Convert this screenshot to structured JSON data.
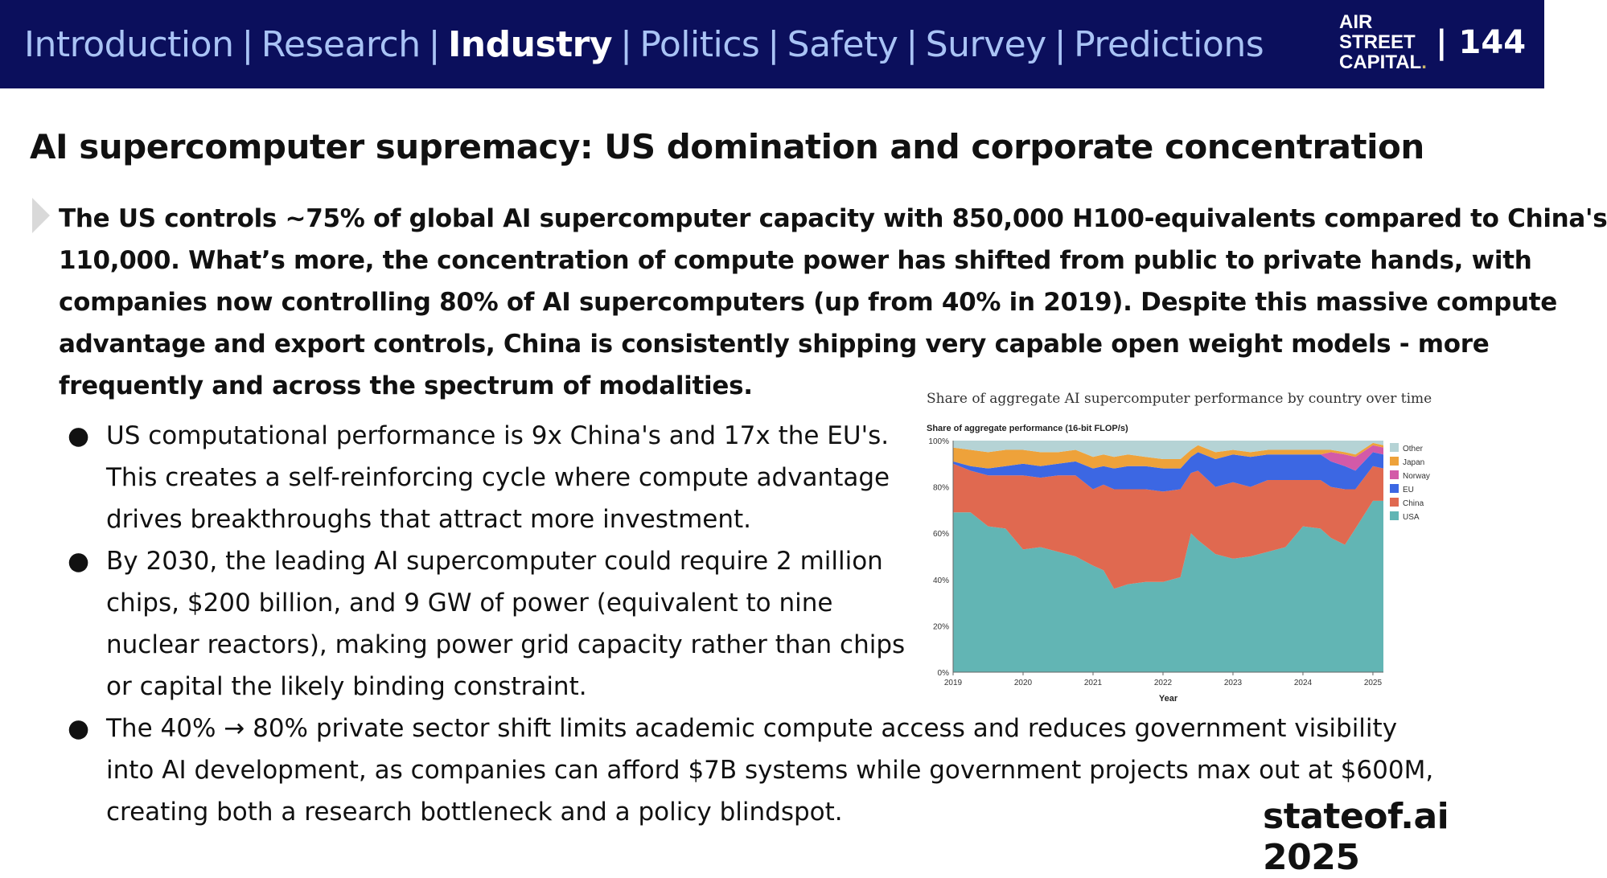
{
  "nav": {
    "items": [
      "Introduction",
      "Research",
      "Industry",
      "Politics",
      "Safety",
      "Survey",
      "Predictions"
    ],
    "active_index": 2,
    "separator": "|"
  },
  "logo": {
    "line1": "AIR",
    "line2": "STREET",
    "line3": "CAPITAL",
    "dot": "."
  },
  "page_number": "| 144",
  "title": "AI supercomputer supremacy: US domination and corporate concentration",
  "lead_lines": [
    "The US controls ~75% of global AI supercomputer capacity with 850,000 H100-equivalents compared to China's",
    "110,000. What’s more, the concentration of compute power has shifted from public to private hands, with",
    "companies now controlling 80% of AI supercomputers (up from 40% in 2019). Despite this massive compute",
    "advantage and export controls, China is consistently shipping very capable open weight models - more",
    "frequently and across the spectrum of modalities."
  ],
  "bullet_marker": "●",
  "bullets": [
    {
      "lines": [
        "US computational performance is 9x China's and 17x the EU's.",
        "This creates a self-reinforcing cycle where compute advantage",
        "drives breakthroughs that attract more investment."
      ]
    },
    {
      "lines": [
        "By 2030, the leading AI supercomputer could require 2 million",
        "chips, $200 billion, and 9 GW of power (equivalent to nine",
        "nuclear reactors), making power grid capacity rather than chips",
        "or capital the likely binding constraint."
      ]
    },
    {
      "lines": [
        "The 40% → 80% private sector shift limits academic compute access and reduces government visibility",
        "into AI development, as companies can afford $7B systems while government projects max out at $600M,",
        "creating both a research bottleneck and a policy blindspot."
      ]
    }
  ],
  "footer": "stateof.ai 2025",
  "colors": {
    "nav_bg": "#0b0f5c",
    "nav_text": "#a9c3f5",
    "USA": "#62b5b4",
    "China": "#e06950",
    "EU": "#3c67e3",
    "Norway": "#d35aa8",
    "Japan": "#eea23a",
    "Other": "#b5d3d5"
  },
  "chart_data": {
    "type": "area",
    "stacked": true,
    "normalized": true,
    "title": "Share of aggregate AI supercomputer performance by country over time",
    "ylabel": "Share of aggregate performance (16-bit FLOP/s)",
    "xlabel": "Year",
    "xlim": [
      2019,
      2025.15
    ],
    "ylim": [
      0,
      100
    ],
    "x_ticks": [
      "2019",
      "2020",
      "2021",
      "2022",
      "2023",
      "2024",
      "2025"
    ],
    "y_ticks": [
      "0%",
      "20%",
      "40%",
      "60%",
      "80%",
      "100%"
    ],
    "legend_position": "right",
    "legend_order": [
      "Other",
      "Japan",
      "Norway",
      "EU",
      "China",
      "USA"
    ],
    "x": [
      2019.0,
      2019.25,
      2019.5,
      2019.75,
      2020.0,
      2020.25,
      2020.5,
      2020.75,
      2021.0,
      2021.15,
      2021.3,
      2021.5,
      2021.75,
      2022.0,
      2022.25,
      2022.4,
      2022.5,
      2022.75,
      2023.0,
      2023.25,
      2023.5,
      2023.75,
      2024.0,
      2024.25,
      2024.4,
      2024.6,
      2024.75,
      2025.0,
      2025.15
    ],
    "series": [
      {
        "name": "USA",
        "values": [
          69,
          69,
          63,
          62,
          53,
          54,
          52,
          50,
          46,
          44,
          36,
          38,
          39,
          39,
          41,
          60,
          57,
          51,
          49,
          50,
          52,
          54,
          63,
          62,
          58,
          55,
          62,
          74,
          74
        ]
      },
      {
        "name": "China",
        "values": [
          21,
          18,
          22,
          23,
          32,
          30,
          33,
          35,
          33,
          37,
          43,
          41,
          40,
          39,
          38,
          26,
          30,
          29,
          33,
          30,
          31,
          29,
          20,
          21,
          22,
          24,
          17,
          15,
          14
        ]
      },
      {
        "name": "EU",
        "values": [
          1,
          2,
          3,
          4,
          5,
          5,
          5,
          6,
          9,
          8,
          9,
          10,
          10,
          10,
          9,
          7,
          8,
          12,
          12,
          13,
          11,
          11,
          11,
          11,
          11,
          10,
          8,
          6,
          6
        ]
      },
      {
        "name": "Norway",
        "values": [
          0,
          0,
          0,
          0,
          0,
          0,
          0,
          0,
          0,
          0,
          0,
          0,
          0,
          0,
          0,
          0,
          0,
          0,
          0,
          0,
          0,
          0,
          0,
          0,
          4,
          5,
          6,
          3,
          3
        ]
      },
      {
        "name": "Japan",
        "values": [
          6,
          7,
          7,
          7,
          6,
          6,
          5,
          5,
          5,
          5,
          5,
          5,
          4,
          4,
          4,
          3,
          3,
          3,
          2,
          2,
          2,
          2,
          2,
          2,
          1,
          1,
          1,
          1,
          1
        ]
      },
      {
        "name": "Other",
        "values": [
          3,
          4,
          5,
          4,
          4,
          5,
          5,
          4,
          7,
          6,
          7,
          6,
          7,
          8,
          8,
          4,
          2,
          5,
          4,
          5,
          4,
          4,
          4,
          4,
          4,
          5,
          6,
          1,
          2
        ]
      }
    ]
  }
}
